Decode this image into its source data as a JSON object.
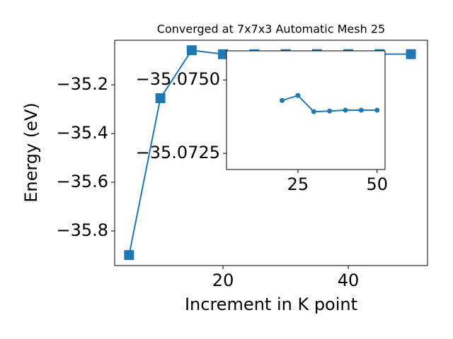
{
  "chart_data": [
    {
      "type": "line",
      "title": "Converged at 7x7x3 Automatic Mesh 25",
      "x_label": "Increment in K point",
      "y_label": "Energy (eV)",
      "x": [
        5,
        10,
        15,
        20,
        25,
        30,
        35,
        40,
        45,
        50
      ],
      "values": [
        -35.899,
        -35.255,
        -35.058,
        -35.0743,
        -35.07447,
        -35.07392,
        -35.07394,
        -35.07397,
        -35.07397,
        -35.07397
      ],
      "color": "#1f77b4",
      "marker": "square",
      "xlim": [
        2.7,
        52.65
      ],
      "ylim": [
        -35.942,
        -35.017
      ],
      "xticks": [
        20,
        40
      ],
      "yticks": [
        {
          "value": -35.8,
          "label": "−35.8"
        },
        {
          "value": -35.6,
          "label": "−35.6"
        },
        {
          "value": -35.4,
          "label": "−35.4"
        },
        {
          "value": -35.2,
          "label": "−35.2"
        }
      ]
    },
    {
      "type": "line",
      "x": [
        20,
        25,
        30,
        35,
        40,
        45,
        50
      ],
      "values": [
        -35.0743,
        -35.07447,
        -35.07392,
        -35.07394,
        -35.07397,
        -35.07397,
        -35.07397
      ],
      "color": "#1f77b4",
      "marker": "circle",
      "y_inverted": true,
      "xlim": [
        2.45,
        52.5
      ],
      "ylim": [
        -35.07195,
        -35.07599
      ],
      "xticks": [
        25,
        50
      ],
      "yticks": [
        {
          "value": -35.0725,
          "label": "−35.0725"
        },
        {
          "value": -35.075,
          "label": "−35.0750"
        }
      ]
    }
  ]
}
